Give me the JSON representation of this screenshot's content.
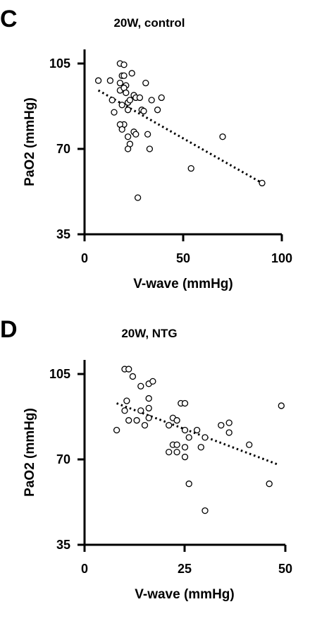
{
  "chart_data": [
    {
      "panel": "C",
      "type": "scatter",
      "title": "20W, control",
      "xlabel": "V-wave (mmHg)",
      "ylabel": "PaO2 (mmHg)",
      "xlim": [
        0,
        100
      ],
      "ylim": [
        35,
        105
      ],
      "xticks": [
        0,
        50,
        100
      ],
      "yticks": [
        35,
        70,
        105
      ],
      "grid": false,
      "trendline": {
        "x": [
          7,
          90
        ],
        "y": [
          94,
          56
        ]
      },
      "points": [
        {
          "x": 7,
          "y": 98
        },
        {
          "x": 13,
          "y": 98
        },
        {
          "x": 18,
          "y": 105
        },
        {
          "x": 20,
          "y": 104.5
        },
        {
          "x": 24,
          "y": 101
        },
        {
          "x": 19,
          "y": 100
        },
        {
          "x": 20,
          "y": 100
        },
        {
          "x": 18,
          "y": 97
        },
        {
          "x": 21,
          "y": 96
        },
        {
          "x": 31,
          "y": 97
        },
        {
          "x": 18,
          "y": 94
        },
        {
          "x": 20,
          "y": 95
        },
        {
          "x": 21,
          "y": 93
        },
        {
          "x": 25,
          "y": 92
        },
        {
          "x": 26,
          "y": 91
        },
        {
          "x": 28,
          "y": 91
        },
        {
          "x": 14,
          "y": 90
        },
        {
          "x": 19,
          "y": 88
        },
        {
          "x": 22,
          "y": 89
        },
        {
          "x": 23,
          "y": 90
        },
        {
          "x": 34,
          "y": 90
        },
        {
          "x": 39,
          "y": 91
        },
        {
          "x": 29,
          "y": 86
        },
        {
          "x": 30,
          "y": 85.5
        },
        {
          "x": 37,
          "y": 86
        },
        {
          "x": 15,
          "y": 85
        },
        {
          "x": 22,
          "y": 86
        },
        {
          "x": 20,
          "y": 80
        },
        {
          "x": 18,
          "y": 80
        },
        {
          "x": 19,
          "y": 78
        },
        {
          "x": 25,
          "y": 77
        },
        {
          "x": 26,
          "y": 76
        },
        {
          "x": 22,
          "y": 75
        },
        {
          "x": 32,
          "y": 76
        },
        {
          "x": 70,
          "y": 75
        },
        {
          "x": 23,
          "y": 72
        },
        {
          "x": 22,
          "y": 70
        },
        {
          "x": 33,
          "y": 70
        },
        {
          "x": 54,
          "y": 62
        },
        {
          "x": 90,
          "y": 56
        },
        {
          "x": 27,
          "y": 50
        }
      ]
    },
    {
      "panel": "D",
      "type": "scatter",
      "title": "20W, NTG",
      "xlabel": "V-wave (mmHg)",
      "ylabel": "PaO2 (mmHg)",
      "xlim": [
        0,
        50
      ],
      "ylim": [
        35,
        105
      ],
      "xticks": [
        0,
        25,
        50
      ],
      "yticks": [
        35,
        70,
        105
      ],
      "grid": false,
      "trendline": {
        "x": [
          8,
          48
        ],
        "y": [
          93,
          68
        ]
      },
      "points": [
        {
          "x": 10,
          "y": 107
        },
        {
          "x": 11,
          "y": 107
        },
        {
          "x": 12,
          "y": 104
        },
        {
          "x": 14,
          "y": 100
        },
        {
          "x": 16,
          "y": 101
        },
        {
          "x": 17,
          "y": 102
        },
        {
          "x": 10.5,
          "y": 94
        },
        {
          "x": 16,
          "y": 95
        },
        {
          "x": 24,
          "y": 93
        },
        {
          "x": 25,
          "y": 93
        },
        {
          "x": 10,
          "y": 90
        },
        {
          "x": 14,
          "y": 90
        },
        {
          "x": 16,
          "y": 91
        },
        {
          "x": 49,
          "y": 92
        },
        {
          "x": 22,
          "y": 87
        },
        {
          "x": 23,
          "y": 86
        },
        {
          "x": 11,
          "y": 86
        },
        {
          "x": 13,
          "y": 86
        },
        {
          "x": 16,
          "y": 87
        },
        {
          "x": 15,
          "y": 84
        },
        {
          "x": 21,
          "y": 84
        },
        {
          "x": 8,
          "y": 82
        },
        {
          "x": 25,
          "y": 82
        },
        {
          "x": 28,
          "y": 82
        },
        {
          "x": 34,
          "y": 84
        },
        {
          "x": 36,
          "y": 85
        },
        {
          "x": 36,
          "y": 81
        },
        {
          "x": 26,
          "y": 79
        },
        {
          "x": 30,
          "y": 79
        },
        {
          "x": 22,
          "y": 76
        },
        {
          "x": 23,
          "y": 76
        },
        {
          "x": 25,
          "y": 75
        },
        {
          "x": 29,
          "y": 75
        },
        {
          "x": 41,
          "y": 76
        },
        {
          "x": 21,
          "y": 73
        },
        {
          "x": 23,
          "y": 73
        },
        {
          "x": 25,
          "y": 71
        },
        {
          "x": 26,
          "y": 60
        },
        {
          "x": 46,
          "y": 60
        },
        {
          "x": 30,
          "y": 49
        }
      ]
    }
  ]
}
